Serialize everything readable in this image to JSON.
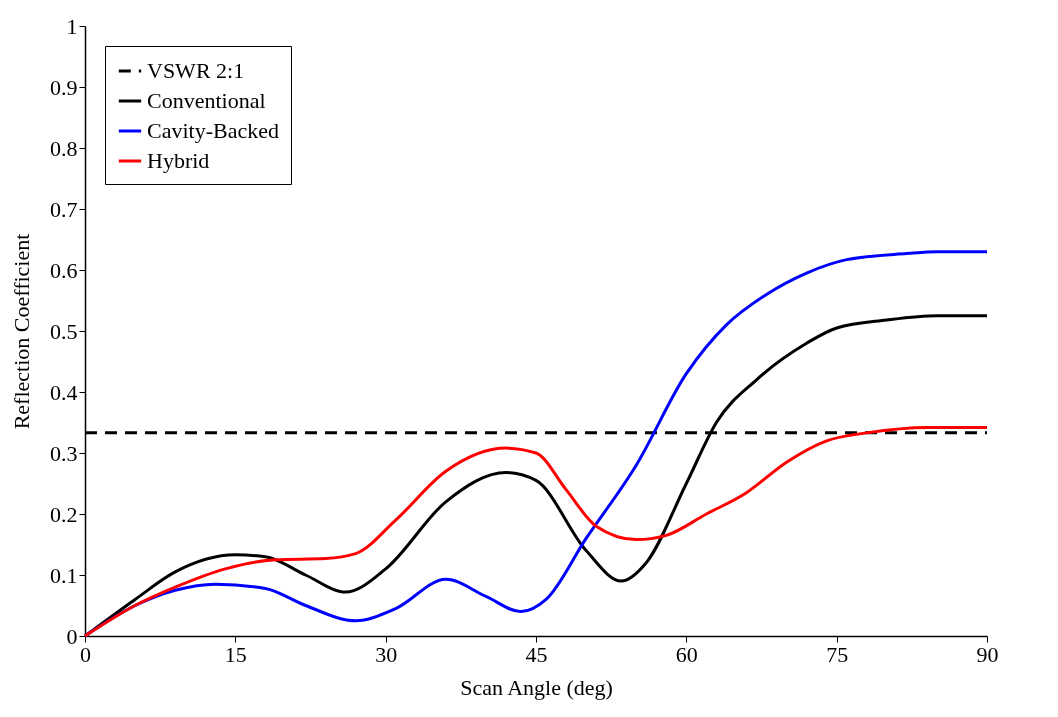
{
  "chart_data": {
    "type": "line",
    "xlabel": "Scan Angle (deg)",
    "ylabel": "Reflection Coefficient",
    "xlim": [
      0,
      90
    ],
    "xticks": [
      0,
      15,
      30,
      45,
      60,
      75,
      90
    ],
    "ylim": [
      0,
      1
    ],
    "yticks": [
      0,
      0.1,
      0.2,
      0.3,
      0.4,
      0.5,
      0.6,
      0.7,
      0.8,
      0.9,
      1
    ],
    "grid": false,
    "legend": "top left",
    "marker": "none",
    "series": [
      {
        "name": "VSWR 2:1",
        "color": "#000000",
        "line_style": "dashed",
        "x": [
          0,
          90
        ],
        "values": [
          0.333,
          0.333
        ]
      },
      {
        "name": "Conventional",
        "color": "#000000",
        "line_style": "solid",
        "x": [
          0,
          5,
          9,
          15,
          18,
          22,
          26,
          30,
          36,
          42,
          45,
          50,
          53.5,
          56,
          60,
          63,
          67,
          72,
          75,
          80,
          85,
          90
        ],
        "values": [
          0,
          0.06,
          0.105,
          0.133,
          0.13,
          0.1,
          0.072,
          0.11,
          0.22,
          0.268,
          0.255,
          0.14,
          0.09,
          0.12,
          0.25,
          0.35,
          0.42,
          0.48,
          0.505,
          0.518,
          0.525,
          0.525
        ]
      },
      {
        "name": "Cavity-Backed",
        "color": "#0000ff",
        "line_style": "solid",
        "x": [
          0,
          5,
          9,
          13,
          18,
          22,
          27,
          31,
          36,
          40,
          43.5,
          46,
          50,
          55,
          60,
          64,
          68,
          72,
          76,
          82,
          85,
          90
        ],
        "values": [
          0,
          0.05,
          0.075,
          0.085,
          0.078,
          0.05,
          0.025,
          0.045,
          0.093,
          0.065,
          0.04,
          0.06,
          0.16,
          0.28,
          0.43,
          0.51,
          0.56,
          0.595,
          0.617,
          0.627,
          0.63,
          0.63
        ]
      },
      {
        "name": "Hybrid",
        "color": "#ff0000",
        "line_style": "solid",
        "x": [
          0,
          5,
          9,
          14,
          19,
          24,
          27,
          31,
          36,
          42,
          45,
          48,
          51,
          55,
          58,
          62,
          66,
          70,
          74,
          78,
          84,
          90
        ],
        "values": [
          0,
          0.05,
          0.08,
          0.11,
          0.125,
          0.127,
          0.135,
          0.19,
          0.27,
          0.308,
          0.3,
          0.24,
          0.18,
          0.158,
          0.165,
          0.2,
          0.235,
          0.285,
          0.32,
          0.333,
          0.342,
          0.342
        ]
      }
    ]
  }
}
